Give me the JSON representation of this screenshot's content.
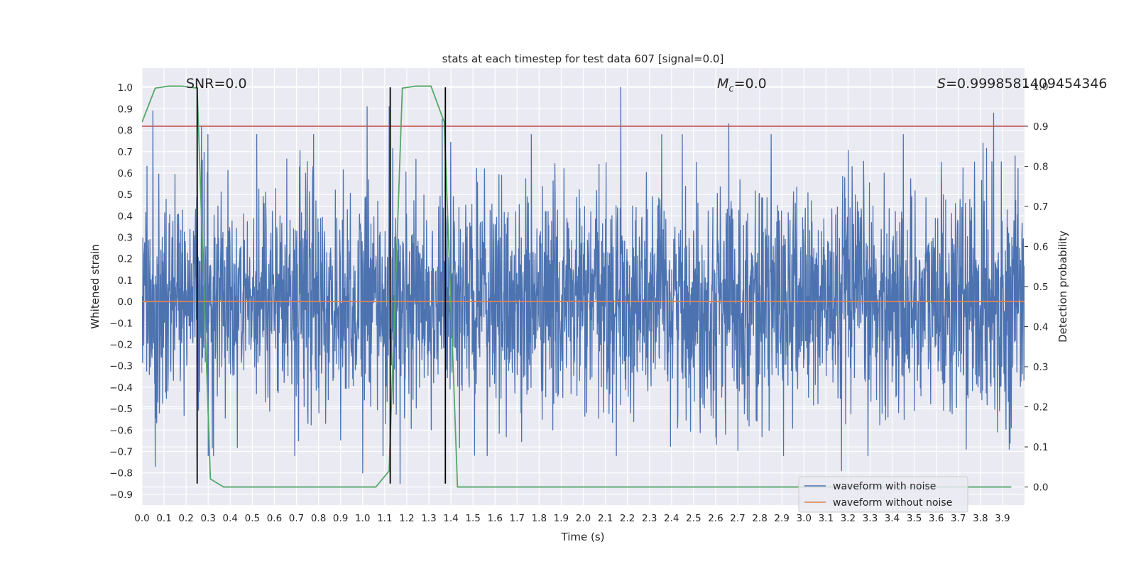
{
  "chart_data": {
    "type": "line",
    "title": "stats at each timestep for test data 607 [signal=0.0]",
    "xlabel": "Time (s)",
    "ylabel_left": "Whitened strain",
    "ylabel_right": "Detection probability",
    "xlim": [
      0.0,
      4.0
    ],
    "ylim_left": [
      -0.95,
      1.09
    ],
    "ylim_right": [
      -0.045,
      1.045
    ],
    "x_ticks": [
      "0.0",
      "0.1",
      "0.2",
      "0.3",
      "0.4",
      "0.5",
      "0.6",
      "0.7",
      "0.8",
      "0.9",
      "1.0",
      "1.1",
      "1.2",
      "1.3",
      "1.4",
      "1.5",
      "1.6",
      "1.7",
      "1.8",
      "1.9",
      "2.0",
      "2.1",
      "2.2",
      "2.3",
      "2.4",
      "2.5",
      "2.6",
      "2.7",
      "2.8",
      "2.9",
      "3.0",
      "3.1",
      "3.2",
      "3.3",
      "3.4",
      "3.5",
      "3.6",
      "3.7",
      "3.8",
      "3.9"
    ],
    "y_ticks_left": [
      "1.0",
      "0.9",
      "0.8",
      "0.7",
      "0.6",
      "0.5",
      "0.4",
      "0.3",
      "0.2",
      "0.1",
      "0.0",
      "−0.1",
      "−0.2",
      "−0.3",
      "−0.4",
      "−0.5",
      "−0.6",
      "−0.7",
      "−0.8",
      "−0.9"
    ],
    "y_ticks_right": [
      "1.0",
      "0.9",
      "0.8",
      "0.7",
      "0.6",
      "0.5",
      "0.4",
      "0.3",
      "0.2",
      "0.1",
      "0.0"
    ],
    "grid": true,
    "legend_position": "lower-right",
    "annotations": {
      "snr": "SNR=0.0",
      "mc_symbol": "M",
      "mc_sub": "c",
      "mc_value": "=0.0",
      "s_symbol": "S",
      "s_value": "=0.9998581409454346"
    },
    "series": [
      {
        "name": "waveform with noise",
        "color": "#4c72b0",
        "description_values": "dense noise between about -0.85 and 1.0",
        "noise_peaks": [
          {
            "x": 0.05,
            "y": 0.89
          },
          {
            "x": 0.27,
            "y": 0.82
          },
          {
            "x": 1.02,
            "y": 0.91
          },
          {
            "x": 1.12,
            "y": 0.91
          },
          {
            "x": 1.36,
            "y": 0.85
          },
          {
            "x": 2.17,
            "y": 1.0
          },
          {
            "x": 2.66,
            "y": 0.83
          },
          {
            "x": 3.86,
            "y": 0.88
          }
        ],
        "noise_troughs": [
          {
            "x": 0.06,
            "y": -0.77
          },
          {
            "x": 0.25,
            "y": -0.74
          },
          {
            "x": 1.0,
            "y": -0.8
          },
          {
            "x": 1.17,
            "y": -0.85
          },
          {
            "x": 3.17,
            "y": -0.79
          },
          {
            "x": 3.94,
            "y": -0.59
          }
        ]
      },
      {
        "name": "waveform without noise",
        "color": "#dd8452",
        "x": [
          0.0,
          4.0
        ],
        "y": [
          0.0,
          0.0
        ]
      },
      {
        "name": "",
        "axis": "right",
        "color": "#55a868",
        "x": [
          0.0,
          0.06,
          0.12,
          0.18,
          0.25,
          0.31,
          0.37,
          0.43,
          0.5,
          1.06,
          1.12,
          1.18,
          1.24,
          1.31,
          1.37,
          1.43,
          1.5,
          3.94
        ],
        "y": [
          0.91,
          0.995,
          1.0,
          1.0,
          0.995,
          0.02,
          0.0,
          0.0,
          0.0,
          0.0,
          0.04,
          0.995,
          1.0,
          1.0,
          0.91,
          0.0,
          0.0,
          0.0
        ]
      },
      {
        "name": "",
        "axis": "right",
        "color": "#c44e52",
        "x": [
          0.0,
          4.0
        ],
        "y": [
          0.9,
          0.9
        ]
      }
    ],
    "vertical_lines": {
      "color": "#000000",
      "x": [
        0.25,
        1.125,
        1.375
      ],
      "y_top": 1.0,
      "y_bottom": -0.85
    }
  }
}
